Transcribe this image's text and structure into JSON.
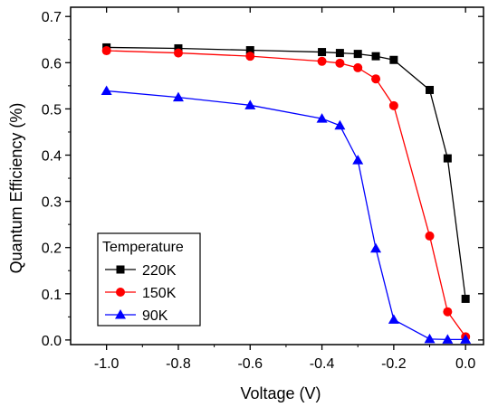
{
  "chart_data": {
    "type": "line",
    "xlabel": "Voltage (V)",
    "ylabel": "Quantum Efficiency (%)",
    "xlim": [
      -1.1,
      0.05
    ],
    "ylim": [
      -0.01,
      0.72
    ],
    "xticks": [
      -1.0,
      -0.8,
      -0.6,
      -0.4,
      -0.2,
      0.0
    ],
    "xtick_labels": [
      "-1.0",
      "-0.8",
      "-0.6",
      "-0.4",
      "-0.2",
      "0.0"
    ],
    "yticks": [
      0.0,
      0.1,
      0.2,
      0.3,
      0.4,
      0.5,
      0.6,
      0.7
    ],
    "ytick_labels": [
      "0.0",
      "0.1",
      "0.2",
      "0.3",
      "0.4",
      "0.5",
      "0.6",
      "0.7"
    ],
    "grid": false,
    "legend": {
      "title": "Temperature",
      "position": "bottom-left"
    },
    "series": [
      {
        "name": "220K",
        "color": "#000000",
        "marker": "square",
        "x": [
          -1.0,
          -0.8,
          -0.6,
          -0.4,
          -0.35,
          -0.3,
          -0.25,
          -0.2,
          -0.1,
          -0.05,
          0.0
        ],
        "y": [
          0.633,
          0.631,
          0.627,
          0.623,
          0.621,
          0.619,
          0.614,
          0.606,
          0.541,
          0.393,
          0.089
        ]
      },
      {
        "name": "150K",
        "color": "#ff0000",
        "marker": "circle",
        "x": [
          -1.0,
          -0.8,
          -0.6,
          -0.4,
          -0.35,
          -0.3,
          -0.25,
          -0.2,
          -0.1,
          -0.05,
          0.0
        ],
        "y": [
          0.626,
          0.621,
          0.614,
          0.603,
          0.599,
          0.589,
          0.565,
          0.507,
          0.225,
          0.061,
          0.007
        ]
      },
      {
        "name": "90K",
        "color": "#0000ff",
        "marker": "triangle",
        "x": [
          -1.0,
          -0.8,
          -0.6,
          -0.4,
          -0.35,
          -0.3,
          -0.25,
          -0.2,
          -0.1,
          -0.05,
          0.0
        ],
        "y": [
          0.539,
          0.525,
          0.508,
          0.479,
          0.464,
          0.389,
          0.198,
          0.044,
          0.002,
          0.001,
          0.001
        ]
      }
    ]
  }
}
